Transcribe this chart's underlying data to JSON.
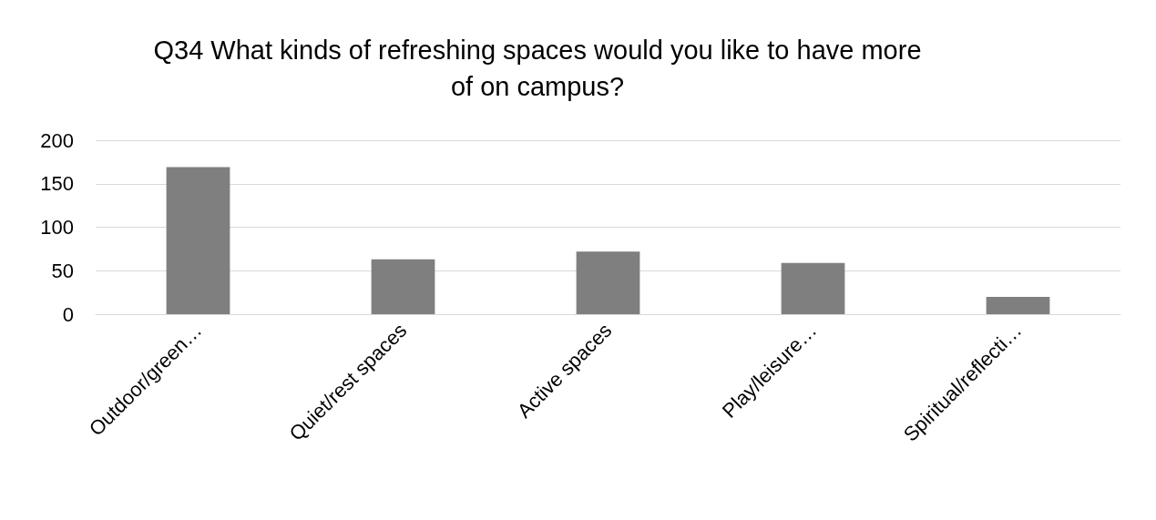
{
  "chart_data": {
    "type": "bar",
    "title": "Q34 What kinds of refreshing spaces would you like to have more\nof on campus?",
    "categories": [
      "Outdoor/green…",
      "Quiet/rest spaces",
      "Active spaces",
      "Play/leisure…",
      "Spiritual/reflecti…"
    ],
    "values": [
      169,
      63,
      72,
      59,
      20
    ],
    "color": "#7f7f7f",
    "ylim": [
      0,
      200
    ],
    "yticks": [
      0,
      50,
      100,
      150,
      200
    ],
    "grid": "y"
  }
}
